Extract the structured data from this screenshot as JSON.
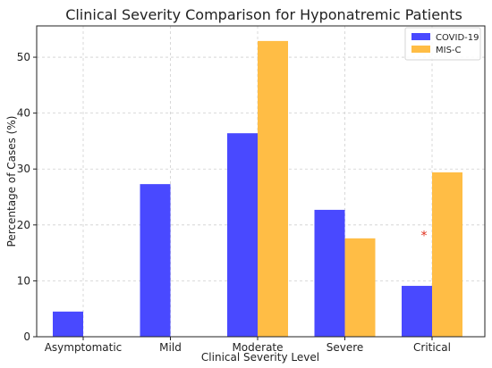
{
  "chart_data": {
    "type": "bar",
    "title": "Clinical Severity Comparison for Hyponatremic Patients",
    "xlabel": "Clinical Severity Level",
    "ylabel": "Percentage of Cases (%)",
    "categories": [
      "Asymptomatic",
      "Mild",
      "Moderate",
      "Severe",
      "Critical"
    ],
    "series": [
      {
        "name": "COVID-19",
        "color": "#4949ff",
        "values": [
          4.5,
          27.3,
          36.4,
          22.7,
          9.1
        ]
      },
      {
        "name": "MIS-C",
        "color": "#ffbd45",
        "values": [
          0,
          0,
          52.9,
          17.6,
          29.4
        ]
      }
    ],
    "ylim": [
      0,
      55.6
    ],
    "yticks": [
      0,
      10,
      20,
      30,
      40,
      50
    ],
    "grid": true,
    "legend_position": "top-right",
    "annotations": [
      {
        "text": "*",
        "color": "#e0301e",
        "category": "Critical",
        "y": 18.3
      }
    ]
  }
}
